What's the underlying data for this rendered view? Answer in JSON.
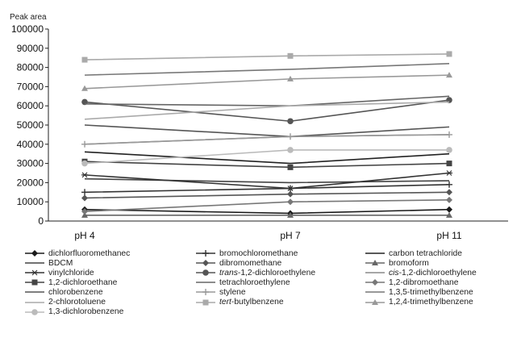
{
  "chart_data": {
    "type": "line",
    "ylabel": "Peak area",
    "xlabel": "",
    "categories": [
      "pH 4",
      "pH 7",
      "pH 11"
    ],
    "ylim": [
      0,
      100000
    ],
    "yticks": [
      "0",
      "10000",
      "20000",
      "30000",
      "40000",
      "50000",
      "60000",
      "70000",
      "80000",
      "90000",
      "100000"
    ],
    "grid": false,
    "legend_position": "bottom",
    "series": [
      {
        "name": "dichlorfluoromethanec",
        "values": [
          6000,
          4000,
          6000
        ],
        "color": "#1a1a1a",
        "marker": "diamond"
      },
      {
        "name": "bromochloromethane",
        "values": [
          15000,
          17000,
          19000
        ],
        "color": "#333333",
        "marker": "plus"
      },
      {
        "name": "carbon tetrachloride",
        "values": [
          36000,
          30000,
          35000
        ],
        "color": "#222222",
        "marker": "none"
      },
      {
        "name": "BDCM",
        "values": [
          22000,
          20000,
          21000
        ],
        "color": "#444444",
        "marker": "none"
      },
      {
        "name": "dibromomethane",
        "values": [
          12000,
          14000,
          15000
        ],
        "color": "#555555",
        "marker": "diamond"
      },
      {
        "name": "bromoform",
        "values": [
          3000,
          3000,
          3000
        ],
        "color": "#666666",
        "marker": "triangle"
      },
      {
        "name": "vinylchloride",
        "values": [
          24000,
          17000,
          25000
        ],
        "color": "#333333",
        "marker": "star"
      },
      {
        "name": "trans-1,2-dichloroethylene",
        "values": [
          62000,
          52000,
          63000
        ],
        "color": "#555555",
        "marker": "circle"
      },
      {
        "name": "cis-1,2-dichloroethylene",
        "values": [
          40000,
          44000,
          45000
        ],
        "color": "#888888",
        "marker": "none"
      },
      {
        "name": "1,2-dichloroethane",
        "values": [
          31000,
          28000,
          30000
        ],
        "color": "#444444",
        "marker": "square"
      },
      {
        "name": "tetrachloroethylene",
        "values": [
          61000,
          60000,
          65000
        ],
        "color": "#666666",
        "marker": "none"
      },
      {
        "name": "1,2-dibromoethane",
        "values": [
          5000,
          10000,
          11000
        ],
        "color": "#777777",
        "marker": "diamond"
      },
      {
        "name": "chlorobenzene",
        "values": [
          50000,
          44000,
          49000
        ],
        "color": "#555555",
        "marker": "none"
      },
      {
        "name": "stylene",
        "values": [
          40000,
          44000,
          45000
        ],
        "color": "#999999",
        "marker": "plus"
      },
      {
        "name": "1,3,5-trimethylbenzene",
        "values": [
          76000,
          79000,
          82000
        ],
        "color": "#777777",
        "marker": "none"
      },
      {
        "name": "2-chlorotoluene",
        "values": [
          53000,
          60000,
          62000
        ],
        "color": "#aaaaaa",
        "marker": "none"
      },
      {
        "name": "tert-butylbenzene",
        "values": [
          84000,
          86000,
          87000
        ],
        "color": "#aaaaaa",
        "marker": "square"
      },
      {
        "name": "1,2,4-trimethylbenzene",
        "values": [
          69000,
          74000,
          76000
        ],
        "color": "#999999",
        "marker": "triangle"
      },
      {
        "name": "1,3-dichlorobenzene",
        "values": [
          30000,
          37000,
          37000
        ],
        "color": "#bbbbbb",
        "marker": "circle"
      }
    ]
  },
  "legend": {
    "items": [
      {
        "prefix": "",
        "italic": "",
        "suffix": "dichlorfluoromethanec"
      },
      {
        "prefix": "",
        "italic": "",
        "suffix": "bromochloromethane"
      },
      {
        "prefix": "",
        "italic": "",
        "suffix": "carbon tetrachloride"
      },
      {
        "prefix": "",
        "italic": "",
        "suffix": "BDCM"
      },
      {
        "prefix": "",
        "italic": "",
        "suffix": "dibromomethane"
      },
      {
        "prefix": "",
        "italic": "",
        "suffix": "bromoform"
      },
      {
        "prefix": "",
        "italic": "",
        "suffix": "vinylchloride"
      },
      {
        "prefix": "",
        "italic": "trans",
        "suffix": "-1,2-dichloroethylene"
      },
      {
        "prefix": "",
        "italic": "cis",
        "suffix": "-1,2-dichloroethylene"
      },
      {
        "prefix": "",
        "italic": "",
        "suffix": "1,2-dichloroethane"
      },
      {
        "prefix": "",
        "italic": "",
        "suffix": "tetrachloroethylene"
      },
      {
        "prefix": "",
        "italic": "",
        "suffix": "1,2-dibromoethane"
      },
      {
        "prefix": "",
        "italic": "",
        "suffix": "chlorobenzene"
      },
      {
        "prefix": "",
        "italic": "",
        "suffix": "stylene"
      },
      {
        "prefix": "",
        "italic": "",
        "suffix": "1,3,5-trimethylbenzene"
      },
      {
        "prefix": "",
        "italic": "",
        "suffix": "2-chlorotoluene"
      },
      {
        "prefix": "",
        "italic": "tert",
        "suffix": "-butylbenzene"
      },
      {
        "prefix": "",
        "italic": "",
        "suffix": "1,2,4-trimethylbenzene"
      },
      {
        "prefix": "",
        "italic": "",
        "suffix": "1,3-dichlorobenzene"
      }
    ]
  }
}
